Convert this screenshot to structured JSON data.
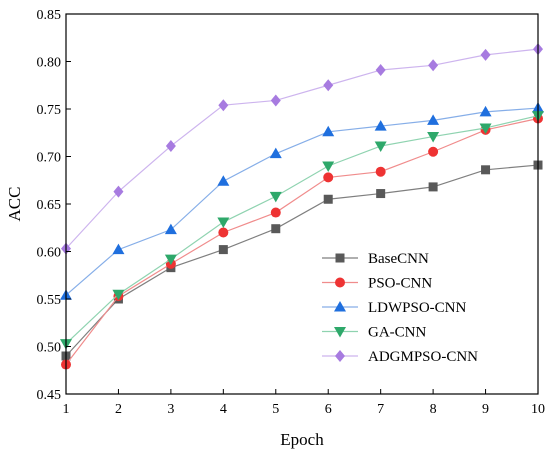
{
  "chart_data": {
    "type": "line",
    "title": "",
    "xlabel": "Epoch",
    "ylabel": "ACC",
    "x": [
      1,
      2,
      3,
      4,
      5,
      6,
      7,
      8,
      9,
      10
    ],
    "xlim": [
      1,
      10
    ],
    "ylim": [
      0.45,
      0.85
    ],
    "yticks": [
      "0.45",
      "0.50",
      "0.55",
      "0.60",
      "0.65",
      "0.70",
      "0.75",
      "0.80",
      "0.85"
    ],
    "xticks": [
      "1",
      "2",
      "3",
      "4",
      "5",
      "6",
      "7",
      "8",
      "9",
      "10"
    ],
    "grid": false,
    "legend_position": "right",
    "series": [
      {
        "name": "BaseCNN",
        "color": "#595959",
        "line_color": "#7f7f7f",
        "marker": "square",
        "values": [
          0.49,
          0.55,
          0.583,
          0.602,
          0.624,
          0.655,
          0.661,
          0.668,
          0.686,
          0.691
        ]
      },
      {
        "name": "PSO-CNN",
        "color": "#ee3333",
        "line_color": "#f08c8c",
        "marker": "circle",
        "values": [
          0.481,
          0.553,
          0.587,
          0.62,
          0.641,
          0.678,
          0.684,
          0.705,
          0.728,
          0.74
        ]
      },
      {
        "name": "LDWPSO-CNN",
        "color": "#1f6fde",
        "line_color": "#86aee8",
        "marker": "triangle-up",
        "values": [
          0.554,
          0.602,
          0.623,
          0.674,
          0.703,
          0.726,
          0.732,
          0.738,
          0.747,
          0.751
        ]
      },
      {
        "name": "GA-CNN",
        "color": "#2ea86a",
        "line_color": "#8fd3b0",
        "marker": "triangle-down",
        "values": [
          0.503,
          0.555,
          0.592,
          0.631,
          0.658,
          0.69,
          0.711,
          0.721,
          0.73,
          0.743
        ]
      },
      {
        "name": "ADGMPSO-CNN",
        "color": "#a77be0",
        "line_color": "#cdb4ee",
        "marker": "diamond",
        "values": [
          0.603,
          0.663,
          0.711,
          0.754,
          0.759,
          0.775,
          0.791,
          0.796,
          0.807,
          0.813
        ]
      }
    ]
  }
}
